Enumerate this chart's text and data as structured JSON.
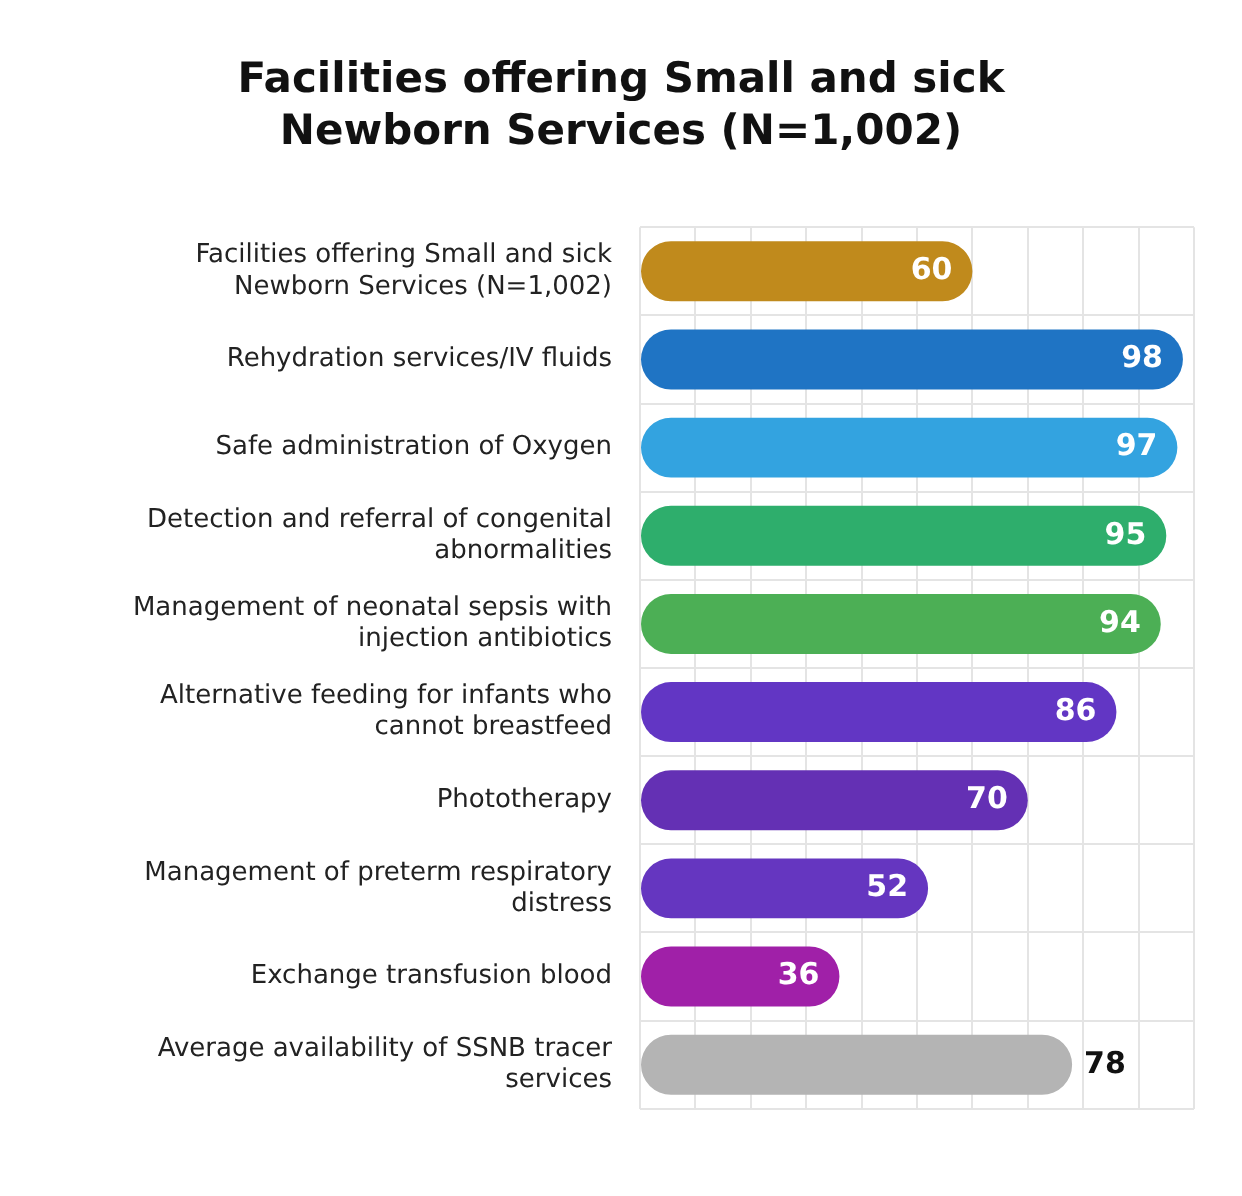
{
  "chart_data": {
    "type": "bar",
    "orientation": "horizontal",
    "title": "Facilities offering Small and sick Newborn Services (N=1,002)",
    "categories": [
      "Facilities offering Small and sick Newborn Services (N=1,002)",
      "Rehydration services/IV fluids",
      "Safe administration of Oxygen",
      "Detection and referral of congenital abnormalities",
      "Management of neonatal sepsis with injection antibiotics",
      "Alternative feeding for infants who cannot breastfeed",
      "Phototherapy",
      "Management of preterm respiratory distress",
      "Exchange transfusion blood",
      "Average availability of SSNB tracer services"
    ],
    "values": [
      60,
      98,
      97,
      95,
      94,
      86,
      70,
      52,
      36,
      78
    ],
    "colors": [
      "#c08a1c",
      "#1f74c4",
      "#33a3e0",
      "#2eae6c",
      "#4caf55",
      "#6236c4",
      "#6430b4",
      "#6536c0",
      "#a020a8",
      "#b4b4b4"
    ],
    "xlim": [
      0,
      100
    ],
    "xticks": [
      {
        "value": 0,
        "label": null
      },
      {
        "value": 10,
        "label": null
      },
      {
        "value": 20,
        "label": null
      },
      {
        "value": 30,
        "label": null
      },
      {
        "value": 40,
        "label": null
      },
      {
        "value": 50,
        "label": null
      },
      {
        "value": 60,
        "label": null
      },
      {
        "value": 70,
        "label": null
      },
      {
        "value": 80,
        "label": null
      },
      {
        "value": 90,
        "label": null
      },
      {
        "value": 100,
        "label": null
      }
    ],
    "grid": true,
    "tick_labels": "y",
    "data_labels": true
  }
}
